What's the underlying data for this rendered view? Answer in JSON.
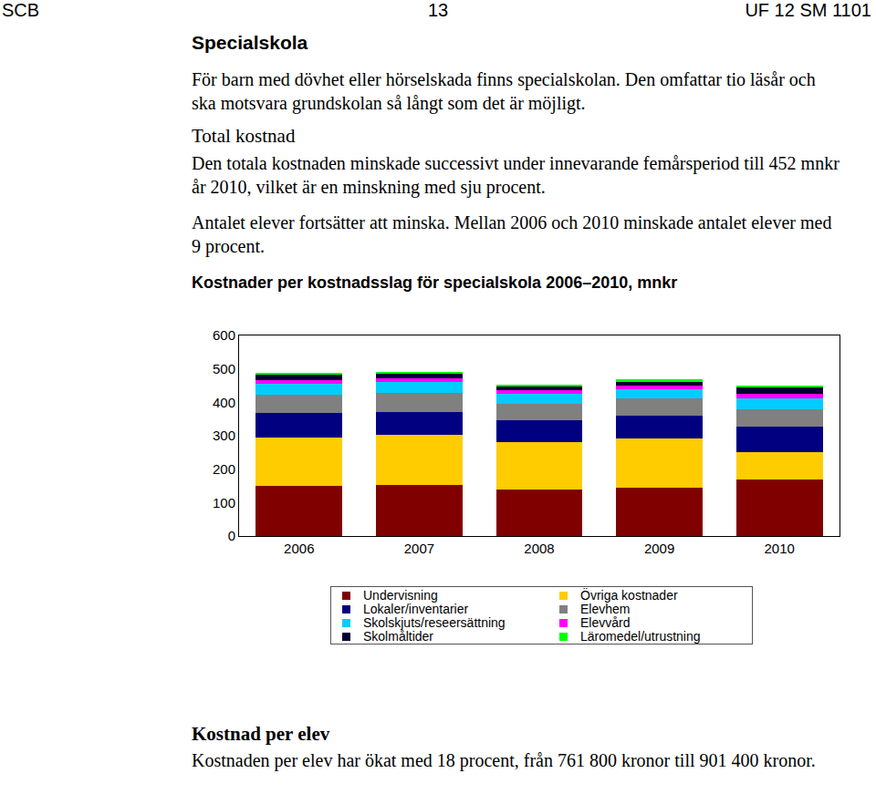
{
  "header": {
    "left": "SCB",
    "center": "13",
    "right": "UF 12 SM 1101"
  },
  "blocks": [
    {
      "kind": "heading",
      "text": "Specialskola"
    },
    {
      "kind": "paragraph",
      "text": "För barn med dövhet eller hörselskada finns specialskolan. Den omfattar tio läsår och ska motsvara grundskolan så långt som det är möjligt."
    },
    {
      "kind": "subheading",
      "text": "Total kostnad"
    },
    {
      "kind": "paragraph",
      "text": "Den totala kostnaden minskade successivt under innevarande femårsperiod till 452 mnkr år 2010, vilket är en minskning med sju procent."
    },
    {
      "kind": "paragraph",
      "text": "Antalet elever fortsätter att minska. Mellan 2006 och 2010 minskade antalet elever med 9 procent."
    }
  ],
  "chart_data": {
    "type": "bar",
    "stacked": true,
    "title": "Kostnader per kostnadsslag för specialskola 2006–2010, mnkr",
    "categories": [
      "2006",
      "2007",
      "2008",
      "2009",
      "2010"
    ],
    "ylim": [
      0,
      600
    ],
    "yticks": [
      0,
      100,
      200,
      300,
      400,
      500,
      600
    ],
    "grid": false,
    "series": [
      {
        "name": "Undervisning",
        "color": "#800000",
        "values": [
          150,
          153,
          139,
          144,
          169
        ]
      },
      {
        "name": "Övriga kostnader",
        "color": "#FFCC00",
        "values": [
          144,
          149,
          142,
          148,
          82
        ]
      },
      {
        "name": "Lokaler/inventarier",
        "color": "#000080",
        "values": [
          74,
          69,
          65,
          68,
          76
        ]
      },
      {
        "name": "Elevhem",
        "color": "#808080",
        "values": [
          54,
          57,
          49,
          51,
          52
        ]
      },
      {
        "name": "Skolskjuts/reseersättning",
        "color": "#00CCFF",
        "values": [
          33,
          32,
          30,
          28,
          32
        ]
      },
      {
        "name": "Elevvård",
        "color": "#FF00FF",
        "values": [
          11,
          11,
          11,
          11,
          14
        ]
      },
      {
        "name": "Skolmåltider",
        "color": "#000033",
        "values": [
          16,
          14,
          11,
          10,
          19
        ]
      },
      {
        "name": "Läromedel/utrustning",
        "color": "#00FF00",
        "values": [
          6,
          5,
          5,
          9,
          6
        ]
      }
    ]
  },
  "after_chart": [
    {
      "kind": "subheading_bold",
      "text": "Kostnad per elev"
    },
    {
      "kind": "paragraph",
      "text": "Kostnaden per elev har ökat med 18 procent, från 761 800 kronor till 901 400 kronor."
    }
  ]
}
